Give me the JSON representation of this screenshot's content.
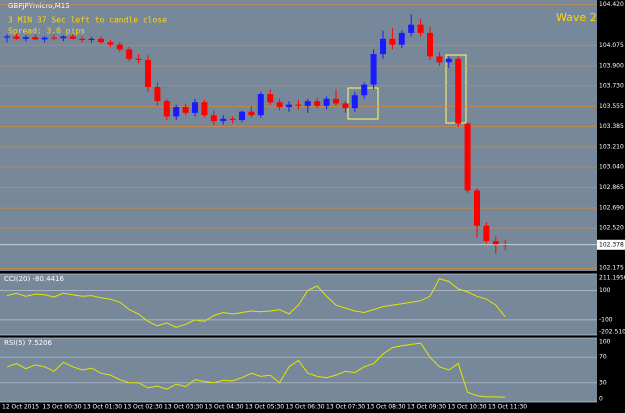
{
  "chart_data": [
    {
      "type": "candlestick",
      "title": "GBPJPYmicro,M15",
      "annotations": [
        "3 MIN 37 Sec left to candle close",
        "Spread: 3.0 pips",
        "Wave 2"
      ],
      "up_color": "#1a1aff",
      "down_color": "#ff0000",
      "open": [
        104.14,
        104.15,
        104.13,
        104.145,
        104.125,
        104.14,
        104.135,
        104.15,
        104.13,
        104.12,
        104.13,
        104.1,
        104.08,
        104.04,
        103.96,
        103.95,
        103.72,
        103.6,
        103.47,
        103.55,
        103.5,
        103.59,
        103.48,
        103.43,
        103.45,
        103.44,
        103.51,
        103.48,
        103.66,
        103.59,
        103.55,
        103.57,
        103.56,
        103.6,
        103.56,
        103.62,
        103.58,
        103.54,
        103.65,
        103.74,
        104.0,
        104.13,
        104.08,
        104.18,
        104.25,
        104.18,
        103.98,
        103.93,
        103.96,
        103.41,
        102.84,
        102.54,
        102.41,
        102.38
      ],
      "high": [
        104.17,
        104.175,
        104.16,
        104.17,
        104.15,
        104.165,
        104.16,
        104.17,
        104.15,
        104.145,
        104.15,
        104.12,
        104.1,
        104.06,
        104.0,
        103.99,
        103.76,
        103.62,
        103.57,
        103.58,
        103.62,
        103.61,
        103.52,
        103.48,
        103.47,
        103.52,
        103.56,
        103.68,
        103.7,
        103.62,
        103.6,
        103.61,
        103.62,
        103.63,
        103.64,
        103.7,
        103.6,
        103.68,
        103.76,
        104.04,
        104.2,
        104.22,
        104.2,
        104.34,
        104.3,
        104.23,
        104.02,
        103.98,
        103.98,
        103.42,
        102.86,
        102.57,
        102.45,
        102.42
      ],
      "low": [
        104.1,
        104.12,
        104.11,
        104.12,
        104.1,
        104.12,
        104.11,
        104.125,
        104.1,
        104.095,
        104.09,
        104.06,
        104.02,
        103.94,
        103.92,
        103.68,
        103.56,
        103.44,
        103.44,
        103.48,
        103.47,
        103.46,
        103.4,
        103.4,
        103.41,
        103.42,
        103.46,
        103.46,
        103.57,
        103.52,
        103.51,
        103.53,
        103.5,
        103.54,
        103.53,
        103.56,
        103.5,
        103.51,
        103.62,
        103.7,
        103.96,
        104.04,
        104.05,
        104.15,
        104.15,
        103.95,
        103.9,
        103.88,
        103.38,
        102.82,
        102.44,
        102.39,
        102.3,
        102.33
      ],
      "close": [
        104.15,
        104.13,
        104.145,
        104.125,
        104.14,
        104.135,
        104.15,
        104.13,
        104.12,
        104.13,
        104.1,
        104.08,
        104.04,
        103.96,
        103.95,
        103.72,
        103.6,
        103.47,
        103.55,
        103.5,
        103.59,
        103.48,
        103.43,
        103.45,
        103.44,
        103.51,
        103.48,
        103.66,
        103.59,
        103.55,
        103.57,
        103.56,
        103.6,
        103.56,
        103.62,
        103.58,
        103.54,
        103.65,
        103.74,
        104.0,
        104.13,
        104.08,
        104.18,
        104.25,
        104.18,
        103.98,
        103.93,
        103.96,
        103.41,
        102.84,
        102.54,
        102.41,
        102.38,
        102.378
      ],
      "x_labels": [
        "12 Oct 2015",
        "13 Oct 00:30",
        "13 Oct 01:30",
        "13 Oct 02:30",
        "13 Oct 03:30",
        "13 Oct 04:30",
        "13 Oct 05:30",
        "13 Oct 06:30",
        "13 Oct 07:30",
        "13 Oct 08:30",
        "13 Oct 09:30",
        "13 Oct 10:30",
        "13 Oct 11:30"
      ],
      "ylim": [
        102.155,
        104.46
      ],
      "yticks": [
        {
          "value": 104.42,
          "label": "104.420"
        },
        {
          "value": 104.075,
          "label": "104.075"
        },
        {
          "value": 103.9,
          "label": "103.900"
        },
        {
          "value": 103.73,
          "label": "103.730"
        },
        {
          "value": 103.555,
          "label": "103.555"
        },
        {
          "value": 103.385,
          "label": "103.385"
        },
        {
          "value": 103.21,
          "label": "103.210"
        },
        {
          "value": 103.04,
          "label": "103.040"
        },
        {
          "value": 102.865,
          "label": "102.865"
        },
        {
          "value": 102.69,
          "label": "102.690"
        },
        {
          "value": 102.52,
          "label": "102.520"
        },
        {
          "value": 102.175,
          "label": "102.175"
        }
      ],
      "last_price": 102.378
    },
    {
      "type": "line",
      "title": "CCI(20) -80.4416",
      "color": "#e5e500",
      "values": [
        65,
        80,
        60,
        75,
        70,
        55,
        80,
        70,
        60,
        65,
        50,
        40,
        20,
        -30,
        -60,
        -110,
        -140,
        -120,
        -150,
        -130,
        -100,
        -110,
        -70,
        -50,
        -60,
        -50,
        -40,
        -45,
        -40,
        -30,
        -60,
        0,
        100,
        130,
        60,
        0,
        -20,
        -40,
        -50,
        -30,
        -10,
        0,
        10,
        20,
        30,
        60,
        180,
        160,
        110,
        90,
        60,
        40,
        0,
        -80
      ],
      "ylim": [
        -202.5105,
        211.195
      ],
      "yticks": [
        {
          "value": 211.195,
          "label": "211.1950"
        },
        100,
        -100,
        {
          "value": -202.5105,
          "label": "-202.5105"
        }
      ]
    },
    {
      "type": "line",
      "title": "RSI(5) 7.5206",
      "color": "#e5e500",
      "values": [
        55,
        60,
        52,
        58,
        55,
        48,
        62,
        55,
        50,
        53,
        45,
        42,
        35,
        30,
        30,
        22,
        25,
        20,
        28,
        24,
        35,
        32,
        30,
        34,
        33,
        38,
        45,
        40,
        42,
        30,
        55,
        65,
        45,
        40,
        38,
        42,
        48,
        46,
        55,
        60,
        75,
        85,
        88,
        90,
        92,
        70,
        55,
        50,
        60,
        15,
        10,
        8,
        8,
        7.5206
      ],
      "ylim": [
        0,
        100
      ],
      "yticks": [
        100,
        70,
        30,
        0
      ]
    }
  ]
}
